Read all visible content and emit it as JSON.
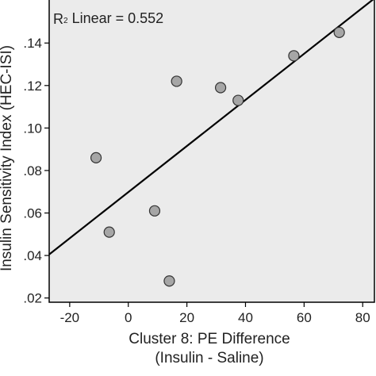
{
  "chart_data": {
    "type": "scatter",
    "xlabel_line1": "Cluster 8: PE Difference",
    "xlabel_line2": "(Insulin - Saline)",
    "ylabel": "Insulin Sensitivity Index (HEC-ISI)",
    "annotation_prefix": "R",
    "annotation_sup": "2",
    "annotation_text": " Linear = 0.552",
    "xlim": [
      -27,
      84
    ],
    "ylim": [
      0.018,
      0.161
    ],
    "xticks": [
      -20,
      0,
      20,
      40,
      60,
      80
    ],
    "xtick_labels": [
      "-20",
      "0",
      "20",
      "40",
      "60",
      "80"
    ],
    "yticks": [
      0.02,
      0.04,
      0.06,
      0.08,
      0.1,
      0.12,
      0.14
    ],
    "ytick_labels": [
      ".02",
      ".04",
      ".06",
      ".08",
      ".10",
      ".12",
      ".14"
    ],
    "points": [
      {
        "x": -11,
        "y": 0.086
      },
      {
        "x": -6.5,
        "y": 0.051
      },
      {
        "x": 9,
        "y": 0.061
      },
      {
        "x": 14,
        "y": 0.028
      },
      {
        "x": 16.5,
        "y": 0.122
      },
      {
        "x": 31.5,
        "y": 0.119
      },
      {
        "x": 37.5,
        "y": 0.113
      },
      {
        "x": 56.5,
        "y": 0.134
      },
      {
        "x": 72,
        "y": 0.145
      }
    ],
    "fit_line": {
      "x_start": -27,
      "y_start": 0.0405,
      "x_end": 84,
      "y_end": 0.161
    },
    "colors": {
      "plot_background": "#ebebeb",
      "point_fill": "#a6a6a6",
      "point_stroke": "#333333",
      "line": "#000000",
      "frame": "#000000"
    },
    "grid": false
  }
}
